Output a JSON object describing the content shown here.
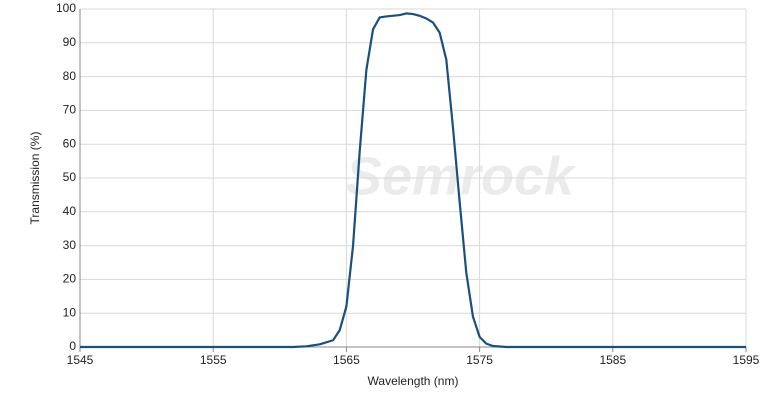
{
  "chart_data": {
    "type": "line",
    "xlabel": "Wavelength (nm)",
    "ylabel": "Transmission (%)",
    "watermark": "Semrock",
    "x": [
      1545,
      1560,
      1561,
      1562,
      1563,
      1564,
      1564.5,
      1565,
      1565.5,
      1566,
      1566.5,
      1567,
      1567.5,
      1568,
      1569,
      1569.5,
      1570,
      1570.5,
      1571,
      1571.5,
      1572,
      1572.5,
      1573,
      1573.5,
      1574,
      1574.5,
      1575,
      1575.5,
      1576,
      1577,
      1595
    ],
    "series": [
      {
        "name": "Transmission",
        "color": "#1b4f7c",
        "values": [
          0,
          0,
          0,
          0.2,
          0.8,
          2,
          5,
          12,
          30,
          58,
          82,
          94,
          97.5,
          97.8,
          98.2,
          98.7,
          98.5,
          98,
          97.2,
          96,
          93,
          85,
          65,
          43,
          22,
          9,
          3,
          1,
          0.3,
          0,
          0
        ]
      }
    ],
    "xlim": [
      1545,
      1595
    ],
    "xticks": [
      1545,
      1555,
      1565,
      1575,
      1585,
      1595
    ],
    "ylim": [
      0,
      100
    ],
    "yticks": [
      0,
      10,
      20,
      30,
      40,
      50,
      60,
      70,
      80,
      90,
      100
    ],
    "grid": true
  }
}
